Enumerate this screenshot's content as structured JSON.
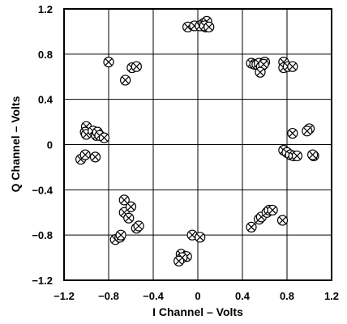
{
  "chart_data": {
    "type": "scatter",
    "xlabel": "I Channel – Volts",
    "ylabel": "Q Channel – Volts",
    "xlim": [
      -1.2,
      1.2
    ],
    "ylim": [
      -1.2,
      1.2
    ],
    "x_ticks": [
      -1.2,
      -0.8,
      -0.4,
      0,
      0.4,
      0.8,
      1.2
    ],
    "x_tick_labels": [
      "−1.2",
      "−0.8",
      "−0.4",
      "0",
      "0.4",
      "0.8",
      "1.2"
    ],
    "y_ticks": [
      1.2,
      0.8,
      0.4,
      0,
      -0.4,
      -0.8,
      -1.2
    ],
    "y_tick_labels": [
      "1.2",
      "0.8",
      "0.4",
      "0",
      "−0.4",
      "−0.8",
      "−1.2"
    ],
    "grid": true,
    "marker": "circle-x",
    "points": [
      [
        -0.09,
        1.04
      ],
      [
        -0.03,
        1.05
      ],
      [
        0.02,
        1.05
      ],
      [
        0.05,
        1.07
      ],
      [
        0.07,
        1.04
      ],
      [
        0.08,
        1.09
      ],
      [
        0.06,
        1.05
      ],
      [
        0.1,
        1.04
      ],
      [
        0.48,
        0.72
      ],
      [
        0.51,
        0.71
      ],
      [
        0.53,
        0.71
      ],
      [
        0.55,
        0.72
      ],
      [
        0.57,
        0.69
      ],
      [
        0.6,
        0.73
      ],
      [
        0.59,
        0.71
      ],
      [
        0.56,
        0.64
      ],
      [
        0.77,
        0.73
      ],
      [
        0.77,
        0.68
      ],
      [
        0.81,
        0.69
      ],
      [
        0.85,
        0.69
      ],
      [
        -0.8,
        0.73
      ],
      [
        -0.65,
        0.57
      ],
      [
        -0.59,
        0.68
      ],
      [
        -0.55,
        0.69
      ],
      [
        -1.05,
        -0.13
      ],
      [
        -1.01,
        -0.09
      ],
      [
        -1.0,
        0.16
      ],
      [
        -1.01,
        0.11
      ],
      [
        -1.0,
        0.09
      ],
      [
        -0.92,
        -0.11
      ],
      [
        -0.94,
        0.12
      ],
      [
        -0.91,
        0.08
      ],
      [
        -0.9,
        0.11
      ],
      [
        -0.88,
        0.08
      ],
      [
        -0.84,
        0.06
      ],
      [
        0.85,
        0.1
      ],
      [
        0.77,
        -0.05
      ],
      [
        0.8,
        -0.07
      ],
      [
        0.83,
        -0.09
      ],
      [
        0.86,
        -0.1
      ],
      [
        0.89,
        -0.1
      ],
      [
        1.0,
        0.14
      ],
      [
        0.98,
        0.12
      ],
      [
        1.04,
        -0.1
      ],
      [
        1.03,
        -0.09
      ],
      [
        -0.66,
        -0.49
      ],
      [
        -0.66,
        -0.6
      ],
      [
        -0.62,
        -0.65
      ],
      [
        -0.6,
        -0.55
      ],
      [
        -0.55,
        -0.74
      ],
      [
        -0.53,
        -0.72
      ],
      [
        -0.74,
        -0.84
      ],
      [
        -0.7,
        -0.82
      ],
      [
        -0.69,
        -0.8
      ],
      [
        -0.05,
        -0.8
      ],
      [
        0.02,
        -0.82
      ],
      [
        -0.15,
        -0.97
      ],
      [
        -0.1,
        -0.99
      ],
      [
        -0.14,
        -1.0
      ],
      [
        -0.17,
        -1.03
      ],
      [
        0.48,
        -0.73
      ],
      [
        0.55,
        -0.66
      ],
      [
        0.57,
        -0.64
      ],
      [
        0.62,
        -0.6
      ],
      [
        0.64,
        -0.58
      ],
      [
        0.67,
        -0.58
      ],
      [
        0.76,
        -0.67
      ]
    ]
  }
}
